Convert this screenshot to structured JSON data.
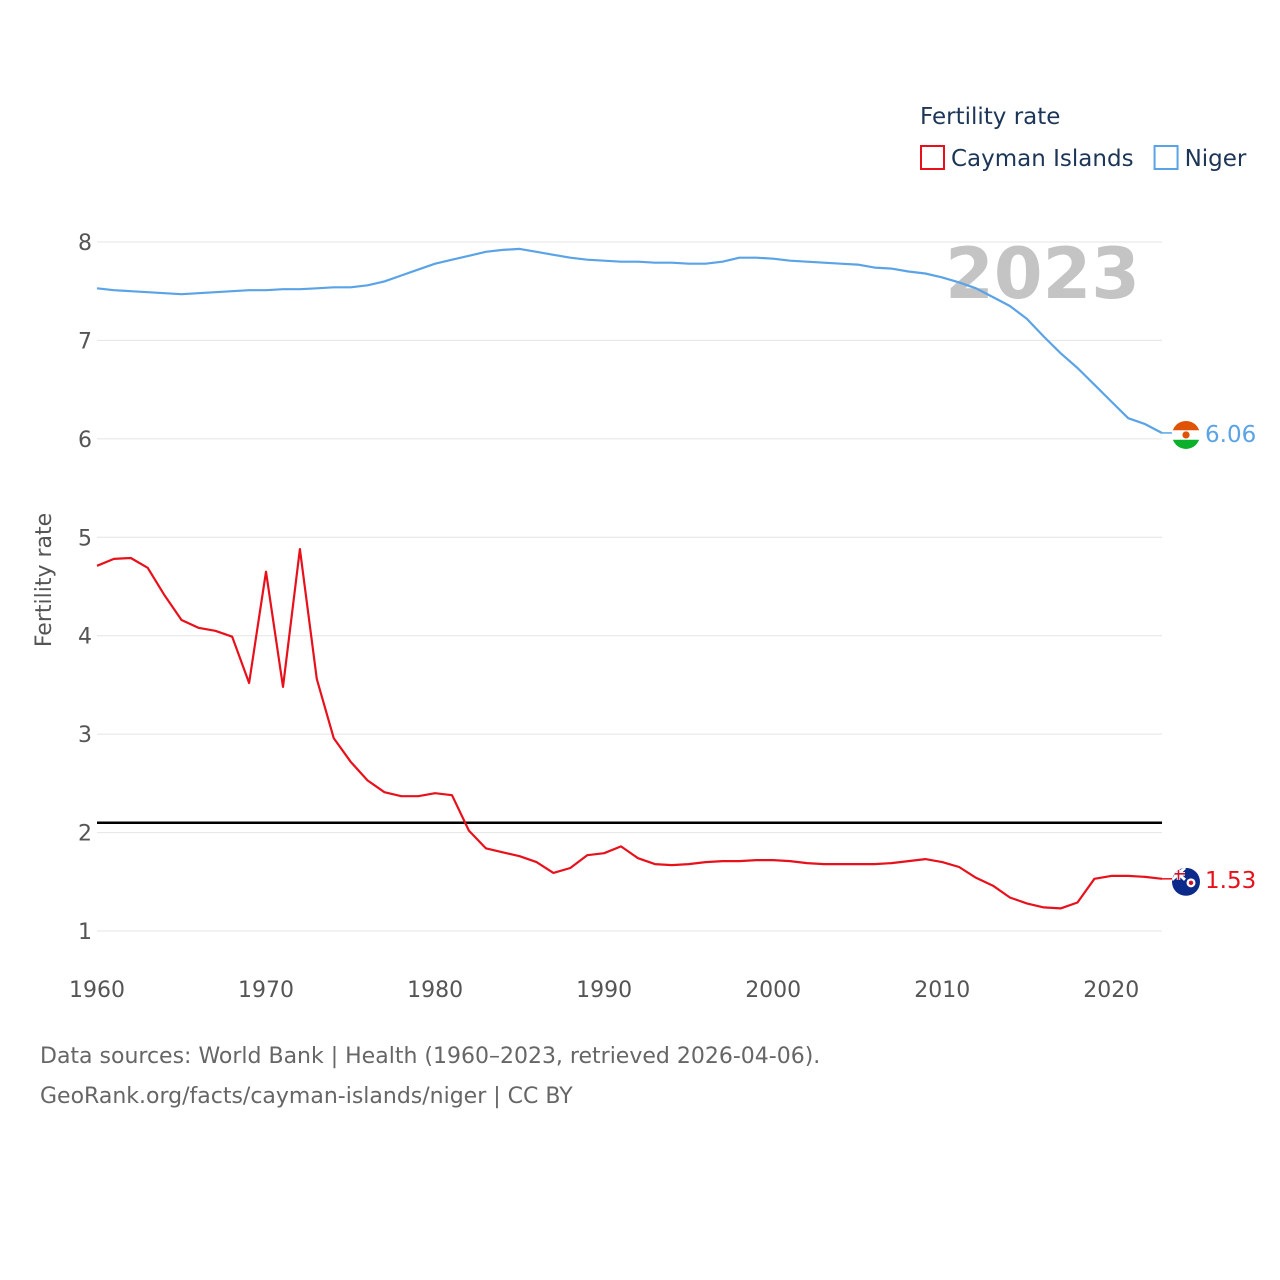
{
  "chart_data": {
    "type": "line",
    "title": "",
    "ylabel": "Fertility rate",
    "xlabel": "",
    "xlim": [
      1960,
      2023
    ],
    "ylim": [
      0.9,
      8.3
    ],
    "y_ticks": [
      1,
      2,
      3,
      4,
      5,
      6,
      7,
      8
    ],
    "x_ticks": [
      1960,
      1970,
      1980,
      1990,
      2000,
      2010,
      2020
    ],
    "year_label": "2023",
    "reference_line": {
      "value": 2.1,
      "color": "#000000"
    },
    "legend": {
      "title": "Fertility rate",
      "placement": "top-right"
    },
    "series": [
      {
        "name": "Cayman Islands",
        "color": "#e8101b",
        "end_value_label": "1.53",
        "x": [
          1960,
          1961,
          1962,
          1963,
          1964,
          1965,
          1966,
          1967,
          1968,
          1969,
          1970,
          1971,
          1972,
          1973,
          1974,
          1975,
          1976,
          1977,
          1978,
          1979,
          1980,
          1981,
          1982,
          1983,
          1984,
          1985,
          1986,
          1987,
          1988,
          1989,
          1990,
          1991,
          1992,
          1993,
          1994,
          1995,
          1996,
          1997,
          1998,
          1999,
          2000,
          2001,
          2002,
          2003,
          2004,
          2005,
          2006,
          2007,
          2008,
          2009,
          2010,
          2011,
          2012,
          2013,
          2014,
          2015,
          2016,
          2017,
          2018,
          2019,
          2020,
          2021,
          2022,
          2023
        ],
        "values": [
          4.71,
          4.78,
          4.79,
          4.69,
          4.41,
          4.16,
          4.08,
          4.05,
          3.99,
          3.52,
          4.65,
          3.48,
          4.88,
          3.56,
          2.96,
          2.72,
          2.53,
          2.41,
          2.37,
          2.37,
          2.4,
          2.38,
          2.02,
          1.84,
          1.8,
          1.76,
          1.7,
          1.59,
          1.64,
          1.77,
          1.79,
          1.86,
          1.74,
          1.68,
          1.67,
          1.68,
          1.7,
          1.71,
          1.71,
          1.72,
          1.72,
          1.71,
          1.69,
          1.68,
          1.68,
          1.68,
          1.68,
          1.69,
          1.71,
          1.73,
          1.7,
          1.65,
          1.54,
          1.46,
          1.34,
          1.28,
          1.24,
          1.23,
          1.29,
          1.53,
          1.56,
          1.56,
          1.55,
          1.53
        ]
      },
      {
        "name": "Niger",
        "color": "#5aa3e6",
        "end_value_label": "6.06",
        "x": [
          1960,
          1961,
          1962,
          1963,
          1964,
          1965,
          1966,
          1967,
          1968,
          1969,
          1970,
          1971,
          1972,
          1973,
          1974,
          1975,
          1976,
          1977,
          1978,
          1979,
          1980,
          1981,
          1982,
          1983,
          1984,
          1985,
          1986,
          1987,
          1988,
          1989,
          1990,
          1991,
          1992,
          1993,
          1994,
          1995,
          1996,
          1997,
          1998,
          1999,
          2000,
          2001,
          2002,
          2003,
          2004,
          2005,
          2006,
          2007,
          2008,
          2009,
          2010,
          2011,
          2012,
          2013,
          2014,
          2015,
          2016,
          2017,
          2018,
          2019,
          2020,
          2021,
          2022,
          2023
        ],
        "values": [
          7.53,
          7.51,
          7.5,
          7.49,
          7.48,
          7.47,
          7.48,
          7.49,
          7.5,
          7.51,
          7.51,
          7.52,
          7.52,
          7.53,
          7.54,
          7.54,
          7.56,
          7.6,
          7.66,
          7.72,
          7.78,
          7.82,
          7.86,
          7.9,
          7.92,
          7.93,
          7.9,
          7.87,
          7.84,
          7.82,
          7.81,
          7.8,
          7.8,
          7.79,
          7.79,
          7.78,
          7.78,
          7.8,
          7.84,
          7.84,
          7.83,
          7.81,
          7.8,
          7.79,
          7.78,
          7.77,
          7.74,
          7.73,
          7.7,
          7.68,
          7.64,
          7.59,
          7.53,
          7.44,
          7.35,
          7.22,
          7.04,
          6.87,
          6.72,
          6.55,
          6.38,
          6.21,
          6.15,
          6.06
        ]
      }
    ]
  },
  "source": {
    "line1": "Data sources: World Bank | Health (1960–2023, retrieved 2026-04-06).",
    "line2": "GeoRank.org/facts/cayman-islands/niger | CC BY"
  }
}
